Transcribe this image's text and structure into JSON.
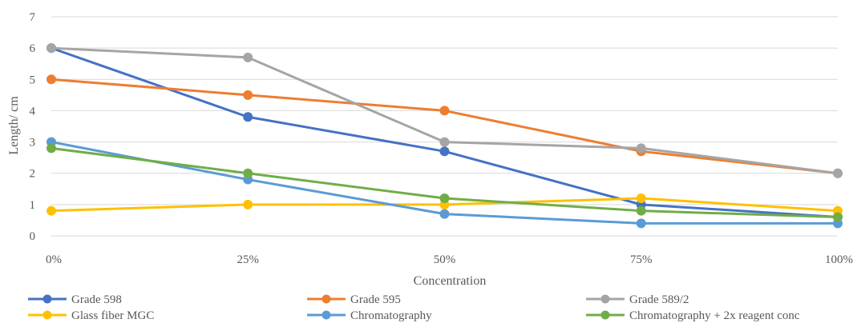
{
  "chart_data": {
    "type": "line",
    "categories": [
      "0%",
      "25%",
      "50%",
      "75%",
      "100%"
    ],
    "xlabel": "Concentration",
    "ylabel": "Length/ cm",
    "ylim": [
      0,
      7
    ],
    "yticks": [
      0,
      1,
      2,
      3,
      4,
      5,
      6,
      7
    ],
    "grid": "horizontal",
    "legend_position": "bottom",
    "series": [
      {
        "name": "Grade 598",
        "color": "#4472C4",
        "values": [
          6.0,
          3.8,
          2.7,
          1.0,
          0.6
        ]
      },
      {
        "name": "Grade 595",
        "color": "#ED7D31",
        "values": [
          5.0,
          4.5,
          4.0,
          2.7,
          2.0
        ]
      },
      {
        "name": "Grade 589/2",
        "color": "#A5A5A5",
        "values": [
          6.0,
          5.7,
          3.0,
          2.8,
          2.0
        ]
      },
      {
        "name": "Glass fiber MGC",
        "color": "#FFC000",
        "values": [
          0.8,
          1.0,
          1.0,
          1.2,
          0.8
        ]
      },
      {
        "name": "Chromatography",
        "color": "#5B9BD5",
        "values": [
          3.0,
          1.8,
          0.7,
          0.4,
          0.4
        ]
      },
      {
        "name": "Chromatography + 2x reagent conc",
        "color": "#70AD47",
        "values": [
          2.8,
          2.0,
          1.2,
          0.8,
          0.6
        ]
      }
    ]
  }
}
